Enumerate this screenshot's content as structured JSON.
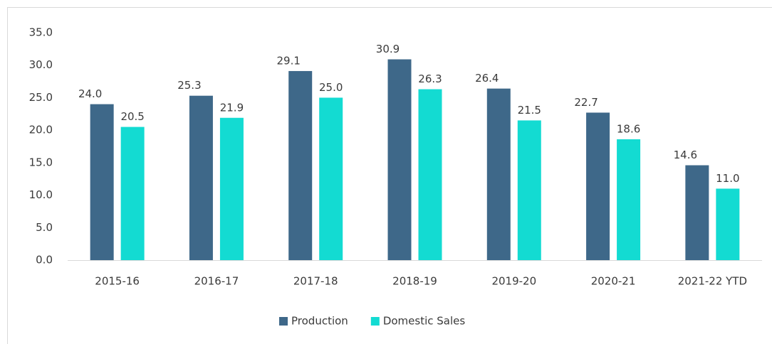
{
  "chart_data": {
    "type": "bar",
    "categories": [
      "2015-16",
      "2016-17",
      "2017-18",
      "2018-19",
      "2019-20",
      "2020-21",
      "2021-22 YTD"
    ],
    "series": [
      {
        "name": "Production",
        "color": "#3e6889",
        "values": [
          24.0,
          25.3,
          29.1,
          30.9,
          26.4,
          22.7,
          14.6
        ],
        "value_labels": [
          "24.0",
          "25.3",
          "29.1",
          "30.9",
          "26.4",
          "22.7",
          "14.6"
        ]
      },
      {
        "name": "Domestic Sales",
        "color": "#13dbd2",
        "values": [
          20.5,
          21.9,
          25.0,
          26.3,
          21.5,
          18.6,
          11.0
        ],
        "value_labels": [
          "20.5",
          "21.9",
          "25.0",
          "26.3",
          "21.5",
          "18.6",
          "11.0"
        ]
      }
    ],
    "ylim": [
      0,
      35
    ],
    "yticks": [
      {
        "value": 0,
        "label": "0.0"
      },
      {
        "value": 5,
        "label": "5.0"
      },
      {
        "value": 10,
        "label": "10.0"
      },
      {
        "value": 15,
        "label": "15.0"
      },
      {
        "value": 20,
        "label": "20.0"
      },
      {
        "value": 25,
        "label": "25.0"
      },
      {
        "value": 30,
        "label": "30.0"
      },
      {
        "value": 35,
        "label": "35.0"
      }
    ],
    "grid": false,
    "legend": "bottom"
  }
}
